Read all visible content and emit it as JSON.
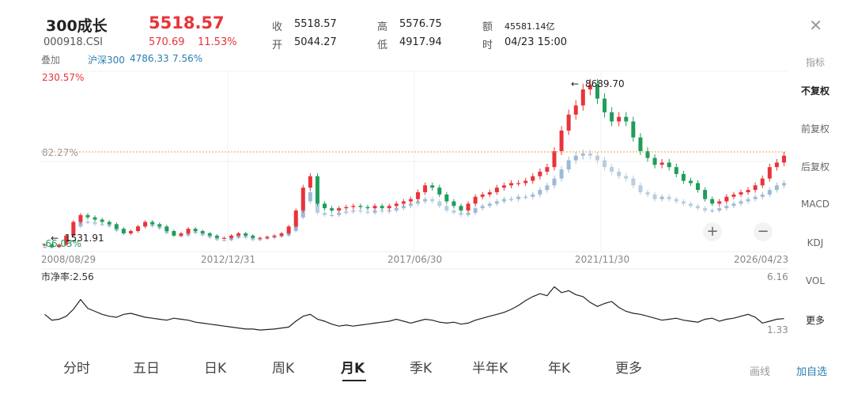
{
  "header": {
    "title": "300成长",
    "code": "000918.CSI",
    "price": "5518.57",
    "change": "570.69",
    "change_pct": "11.53%",
    "close_label": "收",
    "close_value": "5518.57",
    "open_label": "开",
    "open_value": "5044.27",
    "high_label": "高",
    "high_value": "5576.75",
    "low_label": "低",
    "low_value": "4917.94",
    "amount_label": "额",
    "amount_value": "45581.14亿",
    "time_label": "时",
    "time_value": "04/23 15:00"
  },
  "overlay": {
    "label": "叠加",
    "name": "沪深300",
    "value": "4786.33",
    "pct": "7.56%"
  },
  "chart": {
    "top_pct": "230.57%",
    "ref_pct": "82.27%",
    "bottom_pct": "-66.03%",
    "max_marker": "8689.70",
    "min_marker": "1531.91",
    "dates": [
      "2008/08/29",
      "2012/12/31",
      "2017/06/30",
      "2021/11/30",
      "2026/04/23"
    ],
    "zoom_in": "+",
    "zoom_out": "−"
  },
  "indicator": {
    "label": "市净率:2.56",
    "max": "6.16",
    "min": "1.33"
  },
  "sidebar": {
    "items": [
      "指标",
      "不复权",
      "前复权",
      "后复权",
      "MACD",
      "KDJ",
      "VOL",
      "更多"
    ]
  },
  "tabs": [
    "分时",
    "五日",
    "日K",
    "周K",
    "月K",
    "季K",
    "半年K",
    "年K",
    "更多"
  ],
  "active_tab": "月K",
  "bottom": {
    "draw": "画线",
    "add": "加自选"
  },
  "colors": {
    "up": "#e8343a",
    "down": "#1f9d5a",
    "overlay": "#9dbad6",
    "accent": "#2a7fb0"
  },
  "chart_data": {
    "type": "candlestick",
    "x_range": [
      "2008/08/29",
      "2026/04/23"
    ],
    "y_range_pct": [
      -66.03,
      230.57
    ],
    "max_price": 8689.7,
    "min_price": 1531.91,
    "reference_pct": 82.27,
    "series": [
      {
        "name": "300成长",
        "values": [
          1.6,
          1.5,
          1.6,
          2.0,
          2.6,
          2.9,
          2.8,
          2.7,
          2.6,
          2.5,
          2.3,
          2.1,
          2.2,
          2.4,
          2.6,
          2.5,
          2.4,
          2.2,
          2.0,
          2.1,
          2.3,
          2.2,
          2.1,
          2.0,
          1.9,
          1.9,
          2.0,
          2.1,
          2.0,
          1.9,
          1.9,
          1.95,
          2.0,
          2.1,
          2.4,
          3.1,
          4.1,
          4.6,
          3.4,
          3.2,
          3.1,
          3.2,
          3.25,
          3.3,
          3.25,
          3.2,
          3.3,
          3.2,
          3.3,
          3.4,
          3.5,
          3.6,
          3.9,
          4.2,
          4.1,
          3.8,
          3.5,
          3.3,
          3.1,
          3.4,
          3.7,
          3.8,
          3.9,
          4.1,
          4.2,
          4.3,
          4.3,
          4.4,
          4.6,
          4.8,
          5.0,
          5.7,
          6.6,
          7.3,
          7.7,
          8.4,
          8.6,
          8.0,
          7.4,
          7.0,
          7.2,
          7.0,
          6.3,
          5.7,
          5.4,
          5.1,
          5.2,
          5.0,
          4.7,
          4.4,
          4.3,
          4.0,
          3.6,
          3.4,
          3.5,
          3.7,
          3.8,
          3.9,
          4.0,
          4.2,
          4.5,
          5.0,
          5.2,
          5.5
        ]
      },
      {
        "name": "沪深300",
        "values": [
          1.5,
          1.5,
          1.6,
          2.0,
          2.4,
          2.6,
          2.6,
          2.5,
          2.5,
          2.4,
          2.2,
          2.1,
          2.2,
          2.4,
          2.5,
          2.4,
          2.3,
          2.1,
          2.0,
          2.0,
          2.2,
          2.1,
          2.0,
          1.9,
          1.8,
          1.8,
          1.9,
          2.0,
          1.9,
          1.8,
          1.85,
          1.9,
          1.95,
          2.0,
          2.2,
          2.8,
          3.5,
          3.9,
          3.0,
          2.9,
          2.9,
          3.0,
          3.05,
          3.1,
          3.05,
          3.0,
          3.1,
          3.05,
          3.1,
          3.2,
          3.3,
          3.4,
          3.5,
          3.6,
          3.5,
          3.3,
          3.1,
          3.0,
          2.9,
          3.0,
          3.2,
          3.3,
          3.4,
          3.5,
          3.6,
          3.6,
          3.7,
          3.7,
          3.8,
          4.0,
          4.2,
          4.5,
          4.9,
          5.3,
          5.5,
          5.6,
          5.5,
          5.3,
          5.0,
          4.8,
          4.6,
          4.5,
          4.2,
          3.9,
          3.8,
          3.6,
          3.7,
          3.6,
          3.5,
          3.4,
          3.3,
          3.2,
          3.1,
          3.1,
          3.2,
          3.3,
          3.4,
          3.5,
          3.6,
          3.7,
          3.8,
          4.0,
          4.2,
          4.3
        ]
      },
      {
        "name": "市净率",
        "values": [
          3.0,
          2.4,
          2.5,
          2.8,
          3.5,
          4.5,
          3.6,
          3.3,
          3.0,
          2.8,
          2.7,
          3.0,
          3.1,
          2.9,
          2.7,
          2.6,
          2.5,
          2.4,
          2.6,
          2.5,
          2.4,
          2.2,
          2.1,
          2.0,
          1.9,
          1.8,
          1.7,
          1.6,
          1.5,
          1.5,
          1.4,
          1.45,
          1.5,
          1.6,
          1.7,
          2.3,
          2.8,
          3.0,
          2.5,
          2.3,
          2.0,
          1.8,
          1.9,
          1.8,
          1.9,
          2.0,
          2.1,
          2.2,
          2.3,
          2.5,
          2.3,
          2.1,
          2.3,
          2.5,
          2.4,
          2.2,
          2.1,
          2.2,
          2.0,
          2.1,
          2.4,
          2.6,
          2.8,
          3.0,
          3.2,
          3.5,
          3.9,
          4.4,
          4.8,
          5.1,
          4.9,
          5.8,
          5.2,
          5.4,
          5.0,
          4.8,
          4.2,
          3.8,
          4.1,
          4.3,
          3.7,
          3.3,
          3.1,
          3.0,
          2.8,
          2.6,
          2.4,
          2.5,
          2.6,
          2.4,
          2.3,
          2.2,
          2.5,
          2.6,
          2.3,
          2.5,
          2.6,
          2.8,
          3.0,
          2.7,
          2.1,
          2.3,
          2.5,
          2.56
        ]
      }
    ]
  }
}
